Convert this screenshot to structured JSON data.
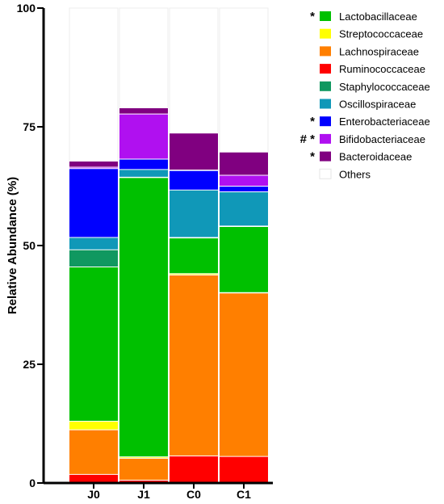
{
  "chart_data": {
    "type": "bar",
    "stacked": true,
    "ylabel": "Relative Abundance (%)",
    "xlabel": "",
    "ylim": [
      0,
      100
    ],
    "yticks": [
      "0",
      "25",
      "50",
      "75",
      "100"
    ],
    "categories": [
      "J0",
      "J1",
      "C0",
      "C1"
    ],
    "grid": false,
    "legend_position": "right",
    "series": [
      {
        "name": "Ruminococcaceae",
        "color": "#ff0000",
        "marker": "",
        "values": [
          1.8,
          0.6,
          5.7,
          5.6
        ]
      },
      {
        "name": "Lachnospiraceae",
        "color": "#ff7f00",
        "marker": "",
        "values": [
          9.4,
          4.6,
          38.1,
          34.4
        ]
      },
      {
        "name": "Streptococcaceae",
        "color": "#ffff00",
        "marker": "",
        "values": [
          1.8,
          0.3,
          0.3,
          0.1
        ]
      },
      {
        "name": "Lactobacillaceae",
        "color": "#00c000",
        "marker": "*",
        "values": [
          32.5,
          58.8,
          7.5,
          13.9
        ]
      },
      {
        "name": "Staphylococcaceae",
        "color": "#109860",
        "marker": "",
        "values": [
          3.6,
          0.1,
          0.1,
          0.1
        ]
      },
      {
        "name": "Oscillospiraceae",
        "color": "#1098b8",
        "marker": "",
        "values": [
          2.6,
          1.6,
          10.0,
          7.2
        ]
      },
      {
        "name": "Enterobacteriaceae",
        "color": "#0000ff",
        "marker": "*",
        "values": [
          14.5,
          2.2,
          4.1,
          1.2
        ]
      },
      {
        "name": "Bifidobacteriaceae",
        "color": "#b010f0",
        "marker": "# *",
        "values": [
          0.3,
          9.5,
          0.1,
          2.3
        ]
      },
      {
        "name": "Bacteroidaceae",
        "color": "#800080",
        "marker": "*",
        "values": [
          1.3,
          1.3,
          7.8,
          4.9
        ]
      },
      {
        "name": "Others",
        "color": "#ffffff",
        "marker": "",
        "values": [
          32.2,
          21.0,
          26.3,
          30.3
        ]
      }
    ],
    "legend_order": [
      "Lactobacillaceae",
      "Streptococcaceae",
      "Lachnospiraceae",
      "Ruminococcaceae",
      "Staphylococcaceae",
      "Oscillospiraceae",
      "Enterobacteriaceae",
      "Bifidobacteriaceae",
      "Bacteroidaceae",
      "Others"
    ]
  }
}
